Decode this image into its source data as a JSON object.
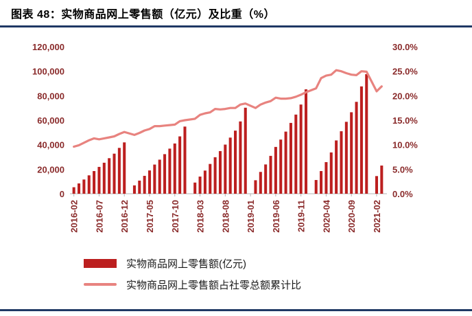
{
  "header": {
    "title": "图表 48：实物商品网上零售额（亿元）及比重（%）"
  },
  "colors": {
    "bar": "#bc1f1f",
    "line": "#e8837f",
    "axis_text": "#8a2b2b",
    "rule": "#1f3864",
    "title_text": "#000000",
    "axis_line": "#b3b3b3"
  },
  "legend": {
    "items": [
      {
        "label": "实物商品网上零售额(亿元)",
        "swatch": "bar"
      },
      {
        "label": "实物商品网上零售额占社零总额累计比",
        "swatch": "line"
      }
    ]
  },
  "chart_data": {
    "type": "bar",
    "title": "实物商品网上零售额（亿元）及比重（%）",
    "legend_position": "bottom",
    "grid": false,
    "months": [
      "2016-02",
      "2016-03",
      "2016-04",
      "2016-05",
      "2016-06",
      "2016-07",
      "2016-08",
      "2016-09",
      "2016-10",
      "2016-11",
      "2016-12",
      "2017-01",
      "2017-02",
      "2017-03",
      "2017-04",
      "2017-05",
      "2017-06",
      "2017-07",
      "2017-08",
      "2017-09",
      "2017-10",
      "2017-11",
      "2017-12",
      "2018-01",
      "2018-02",
      "2018-03",
      "2018-04",
      "2018-05",
      "2018-06",
      "2018-07",
      "2018-08",
      "2018-09",
      "2018-10",
      "2018-11",
      "2018-12",
      "2019-01",
      "2019-02",
      "2019-03",
      "2019-04",
      "2019-05",
      "2019-06",
      "2019-07",
      "2019-08",
      "2019-09",
      "2019-10",
      "2019-11",
      "2019-12",
      "2020-01",
      "2020-02",
      "2020-03",
      "2020-04",
      "2020-05",
      "2020-06",
      "2020-07",
      "2020-08",
      "2020-09",
      "2020-10",
      "2020-11",
      "2020-12",
      "2021-01",
      "2021-02",
      "2021-03"
    ],
    "series": [
      {
        "name": "实物商品网上零售额(亿元)",
        "type": "bar",
        "axis": "left",
        "color": "#bc1f1f",
        "values": [
          5300,
          8400,
          11600,
          15000,
          18500,
          21900,
          25300,
          29000,
          32700,
          37400,
          41900,
          null,
          6800,
          10700,
          14600,
          19000,
          23800,
          27800,
          32300,
          36800,
          41000,
          46800,
          54800,
          null,
          9100,
          14000,
          18900,
          24300,
          29800,
          34800,
          40100,
          45800,
          51500,
          59000,
          70200,
          null,
          11000,
          17800,
          23900,
          30900,
          38200,
          44200,
          50700,
          57800,
          64600,
          72800,
          85200,
          null,
          11200,
          18500,
          25800,
          33700,
          43500,
          51000,
          58700,
          66500,
          75000,
          87600,
          97600,
          null,
          14400,
          23000
        ]
      },
      {
        "name": "实物商品网上零售额占社零总额累计比",
        "type": "line",
        "axis": "right",
        "color": "#e8837f",
        "values": [
          9.6,
          9.9,
          10.4,
          10.9,
          11.3,
          11.1,
          11.3,
          11.5,
          11.7,
          12.2,
          12.6,
          null,
          12.0,
          12.4,
          12.9,
          13.2,
          13.8,
          13.8,
          13.9,
          14.0,
          14.1,
          14.8,
          15.0,
          null,
          15.3,
          16.1,
          16.4,
          16.6,
          17.3,
          17.2,
          17.3,
          17.5,
          17.5,
          18.2,
          18.4,
          null,
          17.5,
          18.2,
          18.6,
          18.9,
          19.6,
          19.4,
          19.4,
          19.5,
          19.8,
          20.2,
          20.7,
          null,
          21.5,
          23.6,
          24.1,
          24.3,
          25.2,
          25.0,
          24.6,
          24.3,
          24.2,
          25.0,
          24.9,
          null,
          20.9,
          21.9
        ]
      }
    ],
    "left_axis": {
      "min": 0,
      "max": 120000,
      "step": 20000,
      "tick_labels": [
        "0",
        "20,000",
        "40,000",
        "60,000",
        "80,000",
        "100,000",
        "120,000"
      ]
    },
    "right_axis": {
      "min": 0,
      "max": 30,
      "step": 5,
      "tick_labels": [
        "0.0%",
        "5.0%",
        "10.0%",
        "15.0%",
        "20.0%",
        "25.0%",
        "30.0%"
      ]
    },
    "x_ticks": [
      {
        "i": 0,
        "label": "2016-02"
      },
      {
        "i": 5,
        "label": "2016-07"
      },
      {
        "i": 10,
        "label": "2016-12"
      },
      {
        "i": 15,
        "label": "2017-05"
      },
      {
        "i": 20,
        "label": "2017-10"
      },
      {
        "i": 25,
        "label": "2018-03"
      },
      {
        "i": 30,
        "label": "2018-08"
      },
      {
        "i": 35,
        "label": "2019-01"
      },
      {
        "i": 40,
        "label": "2019-06"
      },
      {
        "i": 45,
        "label": "2019-11"
      },
      {
        "i": 50,
        "label": "2020-04"
      },
      {
        "i": 55,
        "label": "2020-09"
      },
      {
        "i": 60,
        "label": "2021-02"
      }
    ]
  }
}
